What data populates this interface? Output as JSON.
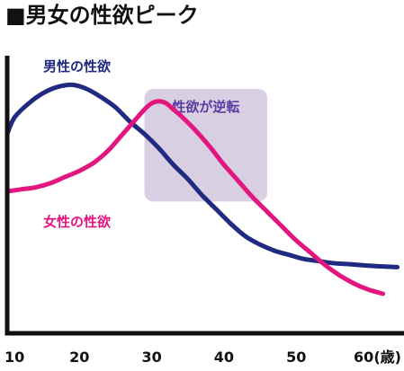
{
  "title": "■男女の性欲ピーク",
  "colors": {
    "male": "#1f2a80",
    "female": "#e3167f",
    "highlight": "#d9cfe3",
    "highlight_text": "#5a3a9e",
    "axis": "#111111"
  },
  "chart_data": {
    "type": "line",
    "x_ticks": [
      "10",
      "20",
      "30",
      "40",
      "50",
      "60(歳)"
    ],
    "xlim": [
      10,
      64
    ],
    "ylim": [
      0,
      100
    ],
    "series": [
      {
        "name": "男性の性欲",
        "x": [
          10,
          11,
          13,
          15,
          17,
          19,
          21,
          23,
          25,
          27,
          29,
          31,
          33,
          35,
          37,
          39,
          41,
          43,
          45,
          47,
          49,
          51,
          53,
          55,
          57,
          59,
          61,
          64
        ],
        "y": [
          78,
          86,
          93,
          98,
          101,
          102,
          100,
          96,
          91,
          84,
          78,
          71,
          63,
          56,
          48,
          41,
          34,
          28,
          24,
          21,
          19,
          17,
          16,
          15,
          14.5,
          14,
          13.5,
          13
        ]
      },
      {
        "name": "女性の性欲",
        "x": [
          10,
          12,
          14,
          16,
          18,
          20,
          22,
          24,
          26,
          28,
          29,
          30,
          31,
          32,
          33,
          34,
          36,
          38,
          40,
          42,
          44,
          46,
          48,
          50,
          52,
          54,
          56,
          58,
          60,
          62
        ],
        "y": [
          50,
          51,
          52,
          54,
          57,
          60,
          64,
          70,
          78,
          86,
          90,
          93,
          94,
          93,
          90,
          87,
          80,
          72,
          63,
          55,
          47,
          40,
          33,
          26,
          20,
          14,
          9,
          5,
          2,
          0
        ]
      }
    ],
    "annotation": {
      "label": "性欲が逆転",
      "x_range": [
        29,
        46
      ],
      "y_range": [
        45,
        100
      ]
    }
  }
}
